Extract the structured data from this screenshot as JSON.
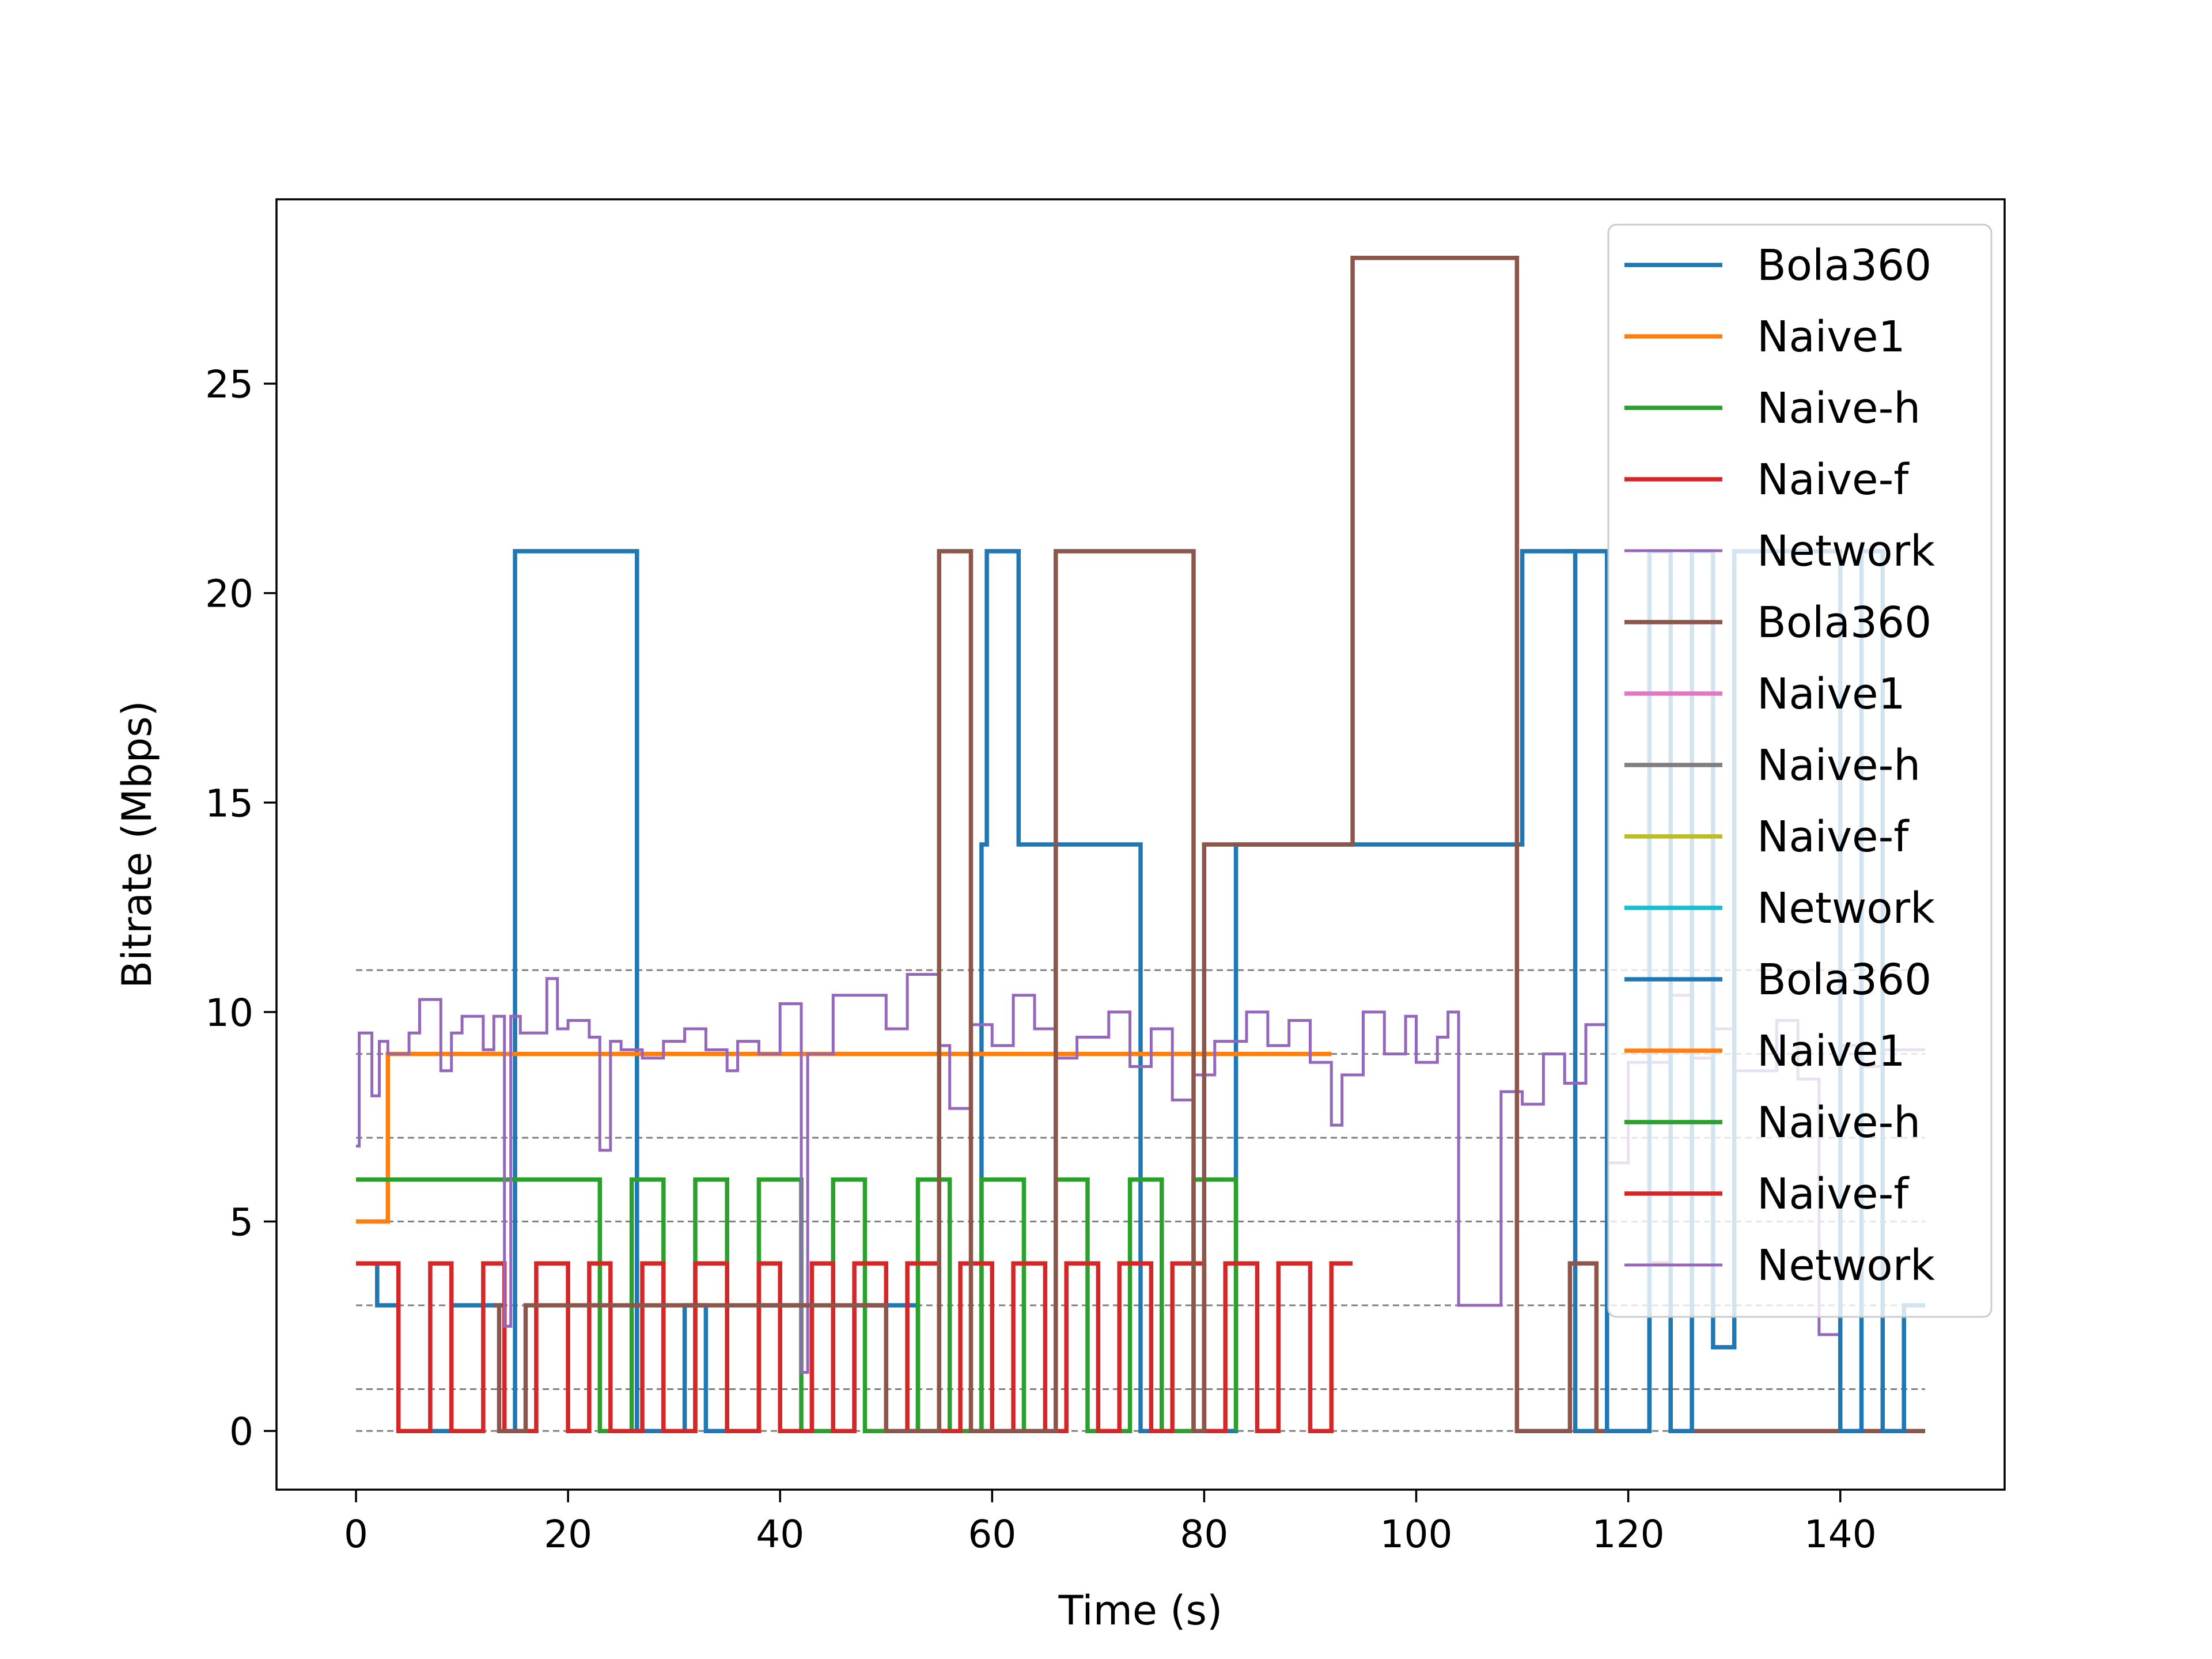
{
  "chart_data": {
    "type": "line",
    "xlabel": "Time (s)",
    "ylabel": "Bitrate (Mbps)",
    "xlim": [
      -7.5,
      155.5
    ],
    "ylim": [
      -1.4,
      29.4
    ],
    "xticks": [
      0,
      20,
      40,
      60,
      80,
      100,
      120,
      140
    ],
    "yticks": [
      0,
      5,
      10,
      15,
      20,
      25
    ],
    "grid": false,
    "legend_position": "top-right",
    "reference_levels": [
      0,
      1,
      3,
      5,
      7,
      9,
      11
    ],
    "series": [
      {
        "name": "Bola360",
        "color": "#1f77b4",
        "width": 3.0,
        "x": [
          0,
          2,
          2,
          4,
          4,
          9,
          9,
          14,
          14,
          15,
          15,
          26.5,
          26.5,
          31,
          31,
          33,
          33,
          38,
          38,
          43,
          43,
          47,
          47,
          53,
          53,
          59,
          59,
          59.5,
          59.5,
          62.5,
          62.5,
          74,
          74,
          83,
          83,
          110,
          110,
          115,
          115,
          120
        ],
        "y": [
          4,
          4,
          3,
          3,
          0,
          0,
          3,
          3,
          0,
          0,
          21,
          21,
          0,
          0,
          3,
          3,
          0,
          0,
          3,
          3,
          0,
          0,
          3,
          3,
          0,
          0,
          14,
          14,
          21,
          21,
          14,
          14,
          0,
          0,
          14,
          14,
          21,
          21,
          0,
          0
        ]
      },
      {
        "name": "Naive1",
        "color": "#ff7f0e",
        "width": 3.0,
        "x": [
          0,
          3,
          3,
          92
        ],
        "y": [
          5,
          5,
          9,
          9
        ]
      },
      {
        "name": "Naive-h",
        "color": "#2ca02c",
        "width": 3.0,
        "x": [
          0,
          23,
          23,
          26,
          26,
          29,
          29,
          32,
          32,
          35,
          35,
          38,
          38,
          42,
          42,
          45,
          45,
          48,
          48,
          53,
          53,
          56,
          56,
          59,
          59,
          63,
          63,
          66,
          66,
          69,
          69,
          73,
          73,
          76,
          76,
          79,
          79,
          83,
          83
        ],
        "y": [
          6,
          6,
          0,
          0,
          6,
          6,
          0,
          0,
          6,
          6,
          0,
          0,
          6,
          6,
          0,
          0,
          6,
          6,
          0,
          0,
          6,
          6,
          0,
          0,
          6,
          6,
          0,
          0,
          6,
          6,
          0,
          0,
          6,
          6,
          0,
          0,
          6,
          6,
          0
        ]
      },
      {
        "name": "Naive-f",
        "color": "#d62728",
        "width": 3.0,
        "x": [
          0,
          4,
          4,
          7,
          7,
          9,
          9,
          12,
          12,
          14,
          14,
          17,
          17,
          20,
          20,
          22,
          22,
          24,
          24,
          27,
          27,
          29,
          29,
          32,
          32,
          35,
          35,
          38,
          38,
          40,
          40,
          43,
          43,
          45,
          45,
          47,
          47,
          50,
          50,
          52,
          52,
          55,
          55,
          57,
          57,
          60,
          60,
          62,
          62,
          65,
          65,
          67,
          67,
          70,
          70,
          72,
          72,
          75,
          75,
          77,
          77,
          80,
          80,
          82,
          82,
          85,
          85,
          87,
          87,
          90,
          90,
          92,
          92,
          94
        ],
        "y": [
          4,
          4,
          0,
          0,
          4,
          4,
          0,
          0,
          4,
          4,
          0,
          0,
          4,
          4,
          0,
          0,
          4,
          4,
          0,
          0,
          4,
          4,
          0,
          0,
          4,
          4,
          0,
          0,
          4,
          4,
          0,
          0,
          4,
          4,
          0,
          0,
          4,
          4,
          0,
          0,
          4,
          4,
          0,
          0,
          4,
          4,
          0,
          0,
          4,
          4,
          0,
          0,
          4,
          4,
          0,
          0,
          4,
          4,
          0,
          0,
          4,
          4,
          0,
          0,
          4,
          4,
          0,
          0,
          4,
          4,
          0,
          0,
          4,
          4
        ]
      },
      {
        "name": "Network",
        "color": "#9467bd",
        "width": 2.0,
        "x": [
          0,
          0.3,
          0.3,
          1.5,
          1.5,
          2.2,
          2.2,
          3,
          3,
          5,
          5,
          6,
          6,
          8,
          8,
          9,
          9,
          10,
          10,
          12,
          12,
          13,
          13,
          14,
          14,
          14.6,
          14.6,
          15.5,
          15.5,
          18,
          18,
          19,
          19,
          20,
          20,
          22,
          22,
          23,
          23,
          24,
          24,
          25,
          25,
          27,
          27,
          29,
          29,
          31,
          31,
          33,
          33,
          35,
          35,
          36,
          36,
          38,
          38,
          40,
          40,
          42,
          42,
          42.6,
          42.6,
          45,
          45,
          50,
          50,
          52,
          52,
          55,
          55,
          56,
          56,
          58,
          58,
          60,
          60,
          62,
          62,
          64,
          64,
          66,
          66,
          68,
          68,
          71,
          71,
          73,
          73,
          75,
          75,
          77,
          77,
          79,
          79,
          81,
          81,
          84,
          84,
          86,
          86,
          88,
          88,
          90,
          90,
          92,
          92,
          93,
          93,
          95,
          95,
          97,
          97,
          99,
          99,
          100,
          100,
          102,
          102,
          103,
          103,
          104,
          104,
          108,
          108,
          110,
          110,
          112,
          112,
          114,
          114,
          116,
          116,
          118,
          118,
          120,
          120,
          124,
          124,
          126,
          126,
          128,
          128,
          130,
          130,
          134,
          134,
          136,
          136,
          138,
          138,
          140,
          140,
          142,
          142,
          144,
          144,
          148
        ],
        "y": [
          6.8,
          6.8,
          9.5,
          9.5,
          8,
          8,
          9.3,
          9.3,
          9,
          9,
          9.5,
          9.5,
          10.3,
          10.3,
          8.6,
          8.6,
          9.5,
          9.5,
          9.9,
          9.9,
          9.1,
          9.1,
          9.9,
          9.9,
          2.5,
          2.5,
          9.9,
          9.9,
          9.5,
          9.5,
          10.8,
          10.8,
          9.6,
          9.6,
          9.8,
          9.8,
          9.4,
          9.4,
          6.7,
          6.7,
          9.3,
          9.3,
          9.1,
          9.1,
          8.9,
          8.9,
          9.3,
          9.3,
          9.6,
          9.6,
          9.1,
          9.1,
          8.6,
          8.6,
          9.3,
          9.3,
          9.0,
          9.0,
          10.2,
          10.2,
          1.4,
          1.4,
          9.0,
          9.0,
          10.4,
          10.4,
          9.6,
          9.6,
          10.9,
          10.9,
          9.2,
          9.2,
          7.7,
          7.7,
          9.7,
          9.7,
          9.2,
          9.2,
          10.4,
          10.4,
          9.6,
          9.6,
          8.9,
          8.9,
          9.4,
          9.4,
          10.0,
          10.0,
          8.7,
          8.7,
          9.6,
          9.6,
          7.9,
          7.9,
          8.5,
          8.5,
          9.3,
          9.3,
          10.0,
          10.0,
          9.2,
          9.2,
          9.8,
          9.8,
          8.8,
          8.8,
          7.3,
          7.3,
          8.5,
          8.5,
          10.0,
          10.0,
          9.0,
          9.0,
          9.9,
          9.9,
          8.8,
          8.8,
          9.4,
          9.4,
          10.0,
          10.0,
          3.0,
          3.0,
          8.1,
          8.1,
          7.8,
          7.8,
          9.0,
          9.0,
          8.3,
          8.3,
          9.7,
          9.7,
          6.4,
          6.4,
          8.8,
          8.8,
          10.4,
          10.4,
          8.9,
          8.9,
          9.6,
          9.6,
          8.6,
          8.6,
          9.8,
          9.8,
          8.4,
          8.4,
          2.3,
          2.3,
          9.2,
          9.2,
          8.7,
          8.7,
          9.1,
          9.1
        ]
      },
      {
        "name": "Bola360",
        "color": "#8c564b",
        "width": 3.0,
        "x": [
          13,
          13.5,
          13.5,
          16,
          16,
          50,
          50,
          55,
          55,
          58,
          58,
          66,
          66,
          79,
          79,
          80,
          80,
          83,
          83,
          94,
          94,
          109.5,
          109.5,
          114.5,
          114.5,
          117,
          117,
          122,
          122,
          124,
          124,
          148
        ],
        "y": [
          3,
          3,
          0,
          0,
          3,
          3,
          0,
          0,
          21,
          21,
          0,
          0,
          21,
          21,
          0,
          0,
          14,
          14,
          14,
          14,
          28,
          28,
          0,
          0,
          4,
          4,
          0,
          0,
          4,
          4,
          0,
          0
        ]
      },
      {
        "name": "Naive1",
        "color": "#e377c2",
        "width": 3.0,
        "x": [],
        "y": []
      },
      {
        "name": "Naive-h",
        "color": "#7f7f7f",
        "width": 3.0,
        "x": [],
        "y": []
      },
      {
        "name": "Naive-f",
        "color": "#bcbd22",
        "width": 3.0,
        "x": [],
        "y": []
      },
      {
        "name": "Network",
        "color": "#17becf",
        "width": 3.0,
        "x": [],
        "y": []
      },
      {
        "name": "Bola360",
        "color": "#1f77b4",
        "width": 3.0,
        "x": [
          114,
          114,
          118,
          118,
          122,
          122,
          124,
          124,
          126,
          126,
          128,
          128,
          130,
          130,
          131,
          131,
          140,
          140,
          142,
          142,
          144,
          144,
          146,
          146,
          148
        ],
        "y": [
          21,
          21,
          21,
          0,
          0,
          21,
          21,
          0,
          0,
          21,
          21,
          2,
          2,
          21,
          21,
          21,
          21,
          0,
          0,
          21,
          21,
          0,
          0,
          3,
          3
        ]
      },
      {
        "name": "Naive1",
        "color": "#ff7f0e",
        "width": 3.0,
        "x": [],
        "y": []
      },
      {
        "name": "Naive-h",
        "color": "#2ca02c",
        "width": 3.0,
        "x": [],
        "y": []
      },
      {
        "name": "Naive-f",
        "color": "#d62728",
        "width": 3.0,
        "x": [],
        "y": []
      },
      {
        "name": "Network",
        "color": "#9467bd",
        "width": 2.0,
        "x": [],
        "y": []
      }
    ]
  }
}
